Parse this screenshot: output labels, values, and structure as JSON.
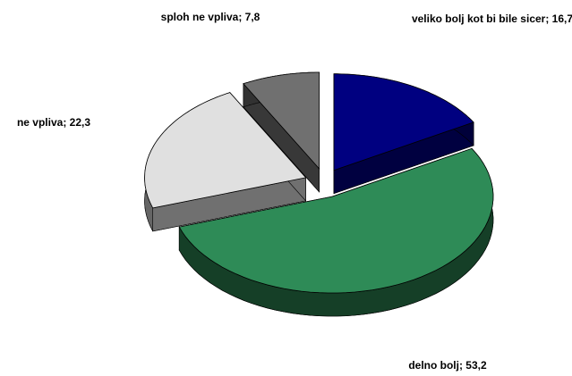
{
  "chart_data": {
    "type": "pie3d",
    "values": [
      16.7,
      53.2,
      22.3,
      7.8
    ],
    "value_labels": [
      "veliko bolj kot bi bile sicer; 16,7",
      "delno bolj; 53,2",
      "ne vpliva; 22,3",
      "sploh ne vpliva; 7,8"
    ],
    "colors": [
      "#000080",
      "#2e8b57",
      "#e0e0e0",
      "#707070"
    ],
    "exploded": true
  }
}
